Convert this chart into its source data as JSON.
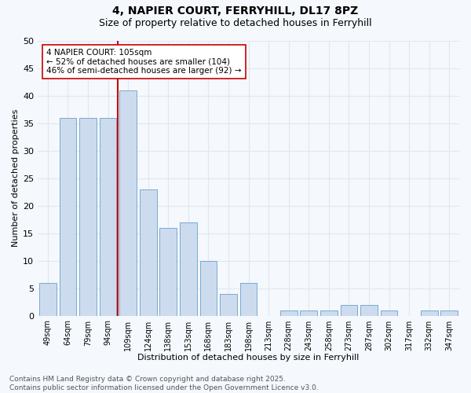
{
  "title": "4, NAPIER COURT, FERRYHILL, DL17 8PZ",
  "subtitle": "Size of property relative to detached houses in Ferryhill",
  "xlabel": "Distribution of detached houses by size in Ferryhill",
  "ylabel": "Number of detached properties",
  "categories": [
    "49sqm",
    "64sqm",
    "79sqm",
    "94sqm",
    "109sqm",
    "124sqm",
    "138sqm",
    "153sqm",
    "168sqm",
    "183sqm",
    "198sqm",
    "213sqm",
    "228sqm",
    "243sqm",
    "258sqm",
    "273sqm",
    "287sqm",
    "302sqm",
    "317sqm",
    "332sqm",
    "347sqm"
  ],
  "values": [
    6,
    36,
    36,
    36,
    41,
    23,
    16,
    17,
    10,
    4,
    6,
    0,
    1,
    1,
    1,
    2,
    2,
    1,
    0,
    1,
    1
  ],
  "bar_color": "#ccdcee",
  "bar_edge_color": "#7aaad0",
  "vline_index": 4,
  "vline_color": "#cc0000",
  "ylim": [
    0,
    50
  ],
  "yticks": [
    0,
    5,
    10,
    15,
    20,
    25,
    30,
    35,
    40,
    45,
    50
  ],
  "annotation_text": "4 NAPIER COURT: 105sqm\n← 52% of detached houses are smaller (104)\n46% of semi-detached houses are larger (92) →",
  "annotation_box_edge": "#cc0000",
  "footer_text": "Contains HM Land Registry data © Crown copyright and database right 2025.\nContains public sector information licensed under the Open Government Licence v3.0.",
  "bg_color": "#f5f8fc",
  "grid_color": "#e0e8f0",
  "title_fontsize": 10,
  "subtitle_fontsize": 9,
  "tick_fontsize": 7,
  "label_fontsize": 8,
  "ann_fontsize": 7.5,
  "footer_fontsize": 6.5
}
